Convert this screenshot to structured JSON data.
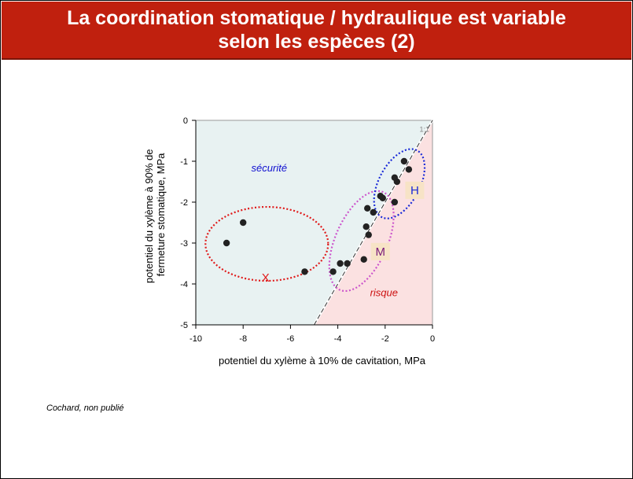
{
  "title": {
    "line1": "La coordination stomatique / hydraulique est variable",
    "line2": "selon les espèces  (2)"
  },
  "source": "Cochard, non publié",
  "chart_data": {
    "type": "scatter",
    "xlabel": "potentiel du xylème à 10% de cavitation, MPa",
    "ylabel_lines": [
      "potentiel du xylème à 90% de",
      "fermeture stomatique, MPa"
    ],
    "xlim": [
      -10,
      0
    ],
    "ylim": [
      -5,
      0
    ],
    "x_ticks": [
      -10,
      -8,
      -6,
      -4,
      -2,
      0
    ],
    "y_ticks": [
      0,
      -1,
      -2,
      -3,
      -4,
      -5
    ],
    "reference_line_label": "1:1",
    "zones": [
      {
        "label": "sécurité",
        "color": "#e8f2f2",
        "text_color": "#1010d0"
      },
      {
        "label": "risque",
        "color": "#fbe1e1",
        "text_color": "#cc1010"
      }
    ],
    "points": [
      {
        "x": -8.7,
        "y": -3.0
      },
      {
        "x": -8.0,
        "y": -2.5
      },
      {
        "x": -5.4,
        "y": -3.7
      },
      {
        "x": -4.2,
        "y": -3.7
      },
      {
        "x": -3.9,
        "y": -3.5
      },
      {
        "x": -3.6,
        "y": -3.5
      },
      {
        "x": -2.9,
        "y": -3.4
      },
      {
        "x": -2.8,
        "y": -2.6
      },
      {
        "x": -2.7,
        "y": -2.8
      },
      {
        "x": -2.75,
        "y": -2.15
      },
      {
        "x": -2.5,
        "y": -2.25
      },
      {
        "x": -2.2,
        "y": -1.85
      },
      {
        "x": -2.1,
        "y": -1.9
      },
      {
        "x": -1.6,
        "y": -1.4
      },
      {
        "x": -1.5,
        "y": -1.5
      },
      {
        "x": -1.6,
        "y": -2.0
      },
      {
        "x": -1.2,
        "y": -1.0
      },
      {
        "x": -1.0,
        "y": -1.2
      }
    ],
    "groups": [
      {
        "label": "X",
        "color": "#e01a1a",
        "label_bg": false
      },
      {
        "label": "M",
        "color": "#cc55cc",
        "label_bg": true,
        "label_color": "#7a1a7a"
      },
      {
        "label": "H",
        "color": "#1a2ad8",
        "label_bg": true,
        "label_color": "#1a2ad8"
      }
    ]
  }
}
